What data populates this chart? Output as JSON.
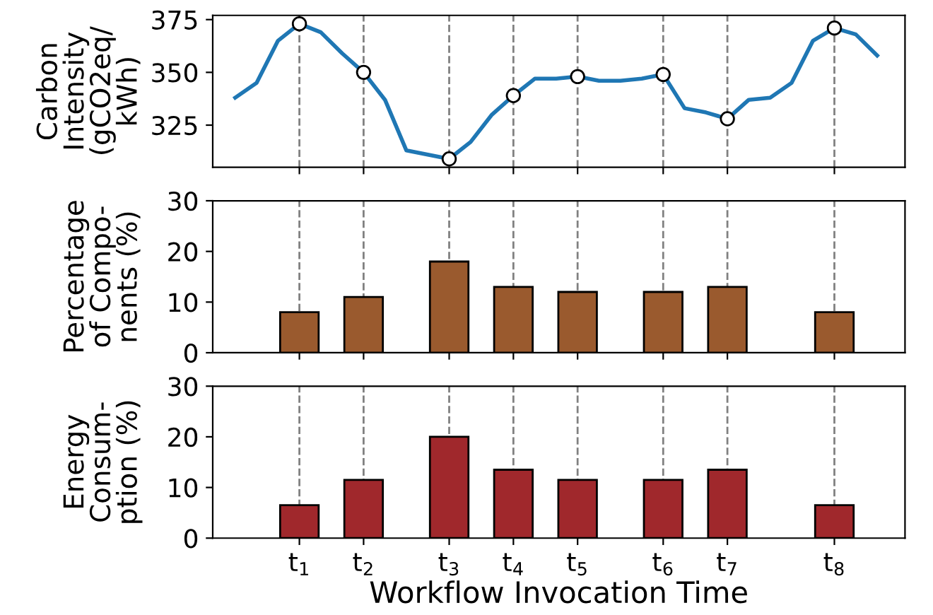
{
  "chart_data": [
    {
      "type": "line",
      "ylabel": "Carbon\nIntensity\n(gCO2eq/\nkWh)",
      "categories": [
        null,
        null,
        null,
        "t$_{1}$",
        null,
        null,
        "t$_{2}$",
        null,
        null,
        null,
        "t$_{3}$",
        null,
        null,
        "t$_{4}$",
        null,
        null,
        "t$_{5}$",
        null,
        null,
        null,
        "t$_{6}$",
        null,
        null,
        "t$_{7}$",
        null,
        null,
        null,
        null,
        "t$_{8}$",
        null,
        null
      ],
      "series": [
        {
          "type": "line",
          "color": "#1f77b4",
          "marker": "none",
          "values": [
            338,
            345,
            365,
            373,
            369,
            359,
            350,
            337,
            313,
            311,
            309,
            317,
            330,
            339,
            347,
            347,
            348,
            346,
            346,
            347,
            349,
            333,
            331,
            328,
            337,
            338,
            345,
            365,
            371,
            368,
            358
          ]
        },
        {
          "type": "scatter",
          "color": "#ffffff",
          "marker": "circle",
          "x": [
            "t$_{1}$",
            "t$_{2}$",
            "t$_{3}$",
            "t$_{4}$",
            "t$_{5}$",
            "t$_{6}$",
            "t$_{7}$",
            "t$_{8}$"
          ],
          "values": [
            373,
            350,
            309,
            339,
            348,
            349,
            328,
            371
          ]
        }
      ],
      "ylim": [
        305,
        377
      ],
      "yticks": [
        325,
        350,
        375
      ],
      "grid": "x",
      "tick_labels": "y"
    },
    {
      "type": "bar",
      "ylabel": "Percentage\nof Compo-\nnents (%)",
      "categories": [
        null,
        null,
        null,
        "t$_{1}$",
        null,
        null,
        "t$_{2}$",
        null,
        null,
        null,
        "t$_{3}$",
        null,
        null,
        "t$_{4}$",
        null,
        null,
        "t$_{5}$",
        null,
        null,
        null,
        "t$_{6}$",
        null,
        null,
        "t$_{7}$",
        null,
        null,
        null,
        null,
        "t$_{8}$",
        null,
        null
      ],
      "series": [
        {
          "color": "#9a5a2e",
          "values": [
            null,
            null,
            null,
            8,
            null,
            null,
            11,
            null,
            null,
            null,
            18,
            null,
            null,
            13,
            null,
            null,
            12,
            null,
            null,
            null,
            12,
            null,
            null,
            13,
            null,
            null,
            null,
            null,
            8,
            null,
            null
          ]
        }
      ],
      "ylim": [
        0,
        30
      ],
      "yticks": [
        0,
        10,
        20,
        30
      ],
      "grid": "x",
      "tick_labels": "y"
    },
    {
      "type": "bar",
      "ylabel": "Energy\nConsum-\nption (%)",
      "xlabel": "Workflow Invocation Time",
      "categories": [
        null,
        null,
        null,
        "t$_{1}$",
        null,
        null,
        "t$_{2}$",
        null,
        null,
        null,
        "t$_{3}$",
        null,
        null,
        "t$_{4}$",
        null,
        null,
        "t$_{5}$",
        null,
        null,
        null,
        "t$_{6}$",
        null,
        null,
        "t$_{7}$",
        null,
        null,
        null,
        null,
        "t$_{8}$",
        null,
        null
      ],
      "series": [
        {
          "color": "#a0282c",
          "values": [
            null,
            null,
            null,
            6.5,
            null,
            null,
            11.5,
            null,
            null,
            null,
            20,
            null,
            null,
            13.5,
            null,
            null,
            11.5,
            null,
            null,
            null,
            11.5,
            null,
            null,
            13.5,
            null,
            null,
            null,
            null,
            6.5,
            null,
            null
          ]
        }
      ],
      "ylim": [
        0,
        30
      ],
      "yticks": [
        0,
        10,
        20,
        30
      ],
      "grid": "x"
    }
  ]
}
